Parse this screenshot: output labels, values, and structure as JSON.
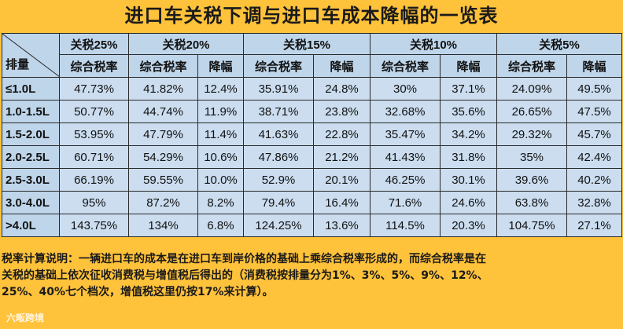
{
  "title": "进口车关税下调与进口车成本降幅的一览表",
  "table": {
    "corner_label": "排量",
    "tariff_groups": [
      "关税25%",
      "关税20%",
      "关税15%",
      "关税10%",
      "关税5%"
    ],
    "sub_headers": {
      "combined_rate": "综合税率",
      "decrease": "降幅"
    },
    "rows": [
      {
        "displacement": "≤1.0L",
        "base": "47.73%",
        "values": [
          "41.82%",
          "12.4%",
          "35.91%",
          "24.8%",
          "30%",
          "37.1%",
          "24.09%",
          "49.5%"
        ]
      },
      {
        "displacement": "1.0-1.5L",
        "base": "50.77%",
        "values": [
          "44.74%",
          "11.9%",
          "38.71%",
          "23.8%",
          "32.68%",
          "35.6%",
          "26.65%",
          "47.5%"
        ]
      },
      {
        "displacement": "1.5-2.0L",
        "base": "53.95%",
        "values": [
          "47.79%",
          "11.4%",
          "41.63%",
          "22.8%",
          "35.47%",
          "34.2%",
          "29.32%",
          "45.7%"
        ]
      },
      {
        "displacement": "2.0-2.5L",
        "base": "60.71%",
        "values": [
          "54.29%",
          "10.6%",
          "47.86%",
          "21.2%",
          "41.43%",
          "31.8%",
          "35%",
          "42.4%"
        ]
      },
      {
        "displacement": "2.5-3.0L",
        "base": "66.19%",
        "values": [
          "59.55%",
          "10.0%",
          "52.9%",
          "20.1%",
          "46.25%",
          "30.1%",
          "39.6%",
          "40.2%"
        ]
      },
      {
        "displacement": "3.0-4.0L",
        "base": "95%",
        "values": [
          "87.2%",
          "8.2%",
          "79.4%",
          "16.4%",
          "71.6%",
          "24.6%",
          "63.8%",
          "32.8%"
        ]
      },
      {
        "displacement": ">4.0L",
        "base": "143.75%",
        "values": [
          "134%",
          "6.8%",
          "124.25%",
          "13.6%",
          "114.5%",
          "20.3%",
          "104.75%",
          "27.1%"
        ]
      }
    ]
  },
  "note": {
    "line1": "税率计算说明：一辆进口车的成本是在进口车到岸价格的基础上乘综合税率形成的，而综合税率是在",
    "line2": "关税的基础上依次征收消费税与增值税后得出的（消费税按排量分为1%、3%、5%、9%、12%、",
    "line3": "25%、40%七个档次，增值税这里仍按17%来计算）。"
  },
  "watermark": "六畈跨境"
}
